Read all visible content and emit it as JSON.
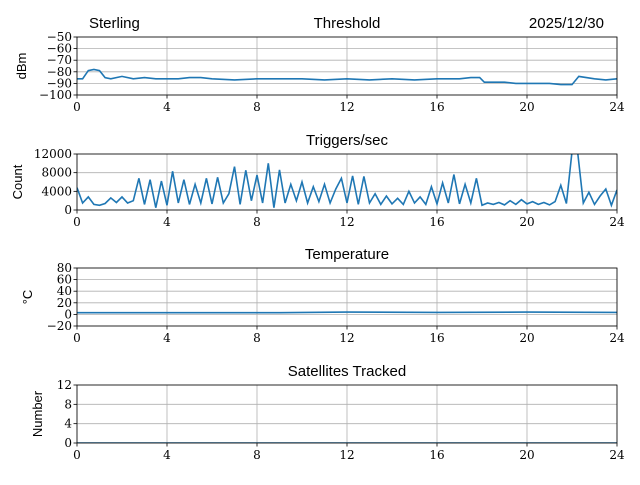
{
  "header": {
    "station": "Sterling",
    "date": "2025/12/30"
  },
  "chart_data": [
    {
      "type": "line",
      "title": "Threshold",
      "xlabel": "",
      "ylabel": "dBm",
      "xlim": [
        0,
        24
      ],
      "ylim": [
        -100,
        -50
      ],
      "xticks": [
        0,
        4,
        8,
        12,
        16,
        20,
        24
      ],
      "yticks": [
        -100,
        -90,
        -80,
        -70,
        -60,
        -50
      ],
      "ytick_labels": [
        "−100",
        "−90",
        "−80",
        "−70",
        "−60",
        "−50"
      ],
      "grid": true,
      "color": "#1f77b4",
      "x": [
        0,
        0.25,
        0.5,
        0.75,
        1,
        1.25,
        1.5,
        2,
        2.5,
        3,
        3.5,
        4,
        4.5,
        5,
        5.5,
        6,
        7,
        8,
        9,
        10,
        11,
        12,
        13,
        14,
        15,
        16,
        17,
        17.5,
        17.9,
        18.1,
        18.5,
        19,
        19.5,
        20,
        21,
        21.5,
        22,
        22.3,
        23,
        23.5,
        24
      ],
      "y": [
        -86,
        -86,
        -79,
        -78,
        -79,
        -85,
        -86,
        -84,
        -86,
        -85,
        -86,
        -86,
        -86,
        -85,
        -85,
        -86,
        -87,
        -86,
        -86,
        -86,
        -87,
        -86,
        -87,
        -86,
        -87,
        -86,
        -86,
        -85,
        -85,
        -89,
        -89,
        -89,
        -90,
        -90,
        -90,
        -91,
        -91,
        -84,
        -86,
        -87,
        -86
      ]
    },
    {
      "type": "line",
      "title": "Triggers/sec",
      "xlabel": "",
      "ylabel": "Count",
      "xlim": [
        0,
        24
      ],
      "ylim": [
        0,
        12000
      ],
      "xticks": [
        0,
        4,
        8,
        12,
        16,
        20,
        24
      ],
      "yticks": [
        0,
        4000,
        8000,
        12000
      ],
      "ytick_labels": [
        "0",
        "4000",
        "8000",
        "12000"
      ],
      "grid": true,
      "color": "#1f77b4",
      "x_step": 0.25,
      "y": [
        4800,
        1500,
        2800,
        1200,
        1000,
        1400,
        2600,
        1600,
        2800,
        1500,
        2000,
        6800,
        1200,
        6500,
        500,
        6200,
        1000,
        8300,
        1500,
        6500,
        1200,
        5500,
        1500,
        6800,
        1300,
        7000,
        1500,
        3500,
        9300,
        1200,
        8500,
        2000,
        7500,
        1500,
        10000,
        500,
        8600,
        1500,
        5500,
        2000,
        6000,
        1500,
        5000,
        1800,
        5500,
        1500,
        4500,
        6800,
        1500,
        7300,
        1200,
        7200,
        1500,
        3500,
        1200,
        3000,
        1300,
        2500,
        1200,
        4000,
        1500,
        2800,
        1200,
        5000,
        1300,
        5800,
        1500,
        7600,
        1300,
        5500,
        1500,
        6800,
        1000,
        1500,
        1200,
        1600,
        1100,
        2000,
        1200,
        2200,
        1300,
        1800,
        1200,
        1600,
        1100,
        1800,
        5300,
        1400,
        12500,
        12500,
        1500,
        3800,
        1200,
        3000,
        4500,
        1000,
        4300
      ]
    },
    {
      "type": "line",
      "title": "Temperature",
      "xlabel": "",
      "ylabel": "°C",
      "xlim": [
        0,
        24
      ],
      "ylim": [
        -20,
        80
      ],
      "xticks": [
        0,
        4,
        8,
        12,
        16,
        20,
        24
      ],
      "yticks": [
        -20,
        0,
        20,
        40,
        60,
        80
      ],
      "ytick_labels": [
        "−20",
        "0",
        "20",
        "40",
        "60",
        "80"
      ],
      "grid": true,
      "color": "#1f77b4",
      "x": [
        0,
        9,
        12,
        16,
        20,
        24
      ],
      "y": [
        3,
        3,
        4,
        3.5,
        4,
        3.5
      ]
    },
    {
      "type": "line",
      "title": "Satellites Tracked",
      "xlabel": "",
      "ylabel": "Number",
      "xlim": [
        0,
        24
      ],
      "ylim": [
        0,
        12
      ],
      "xticks": [
        0,
        4,
        8,
        12,
        16,
        20,
        24
      ],
      "yticks": [
        0,
        4,
        8,
        12
      ],
      "ytick_labels": [
        "0",
        "4",
        "8",
        "12"
      ],
      "grid": true,
      "color": "#1f77b4",
      "x": [
        0,
        24
      ],
      "y": [
        0,
        0
      ]
    }
  ]
}
